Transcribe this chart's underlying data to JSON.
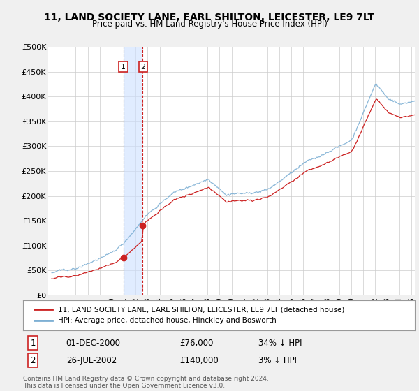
{
  "title": "11, LAND SOCIETY LANE, EARL SHILTON, LEICESTER, LE9 7LT",
  "subtitle": "Price paid vs. HM Land Registry's House Price Index (HPI)",
  "ylim": [
    0,
    500000
  ],
  "yticks": [
    0,
    50000,
    100000,
    150000,
    200000,
    250000,
    300000,
    350000,
    400000,
    450000,
    500000
  ],
  "ytick_labels": [
    "£0",
    "£50K",
    "£100K",
    "£150K",
    "£200K",
    "£250K",
    "£300K",
    "£350K",
    "£400K",
    "£450K",
    "£500K"
  ],
  "bg_color": "#f0f0f0",
  "plot_bg_color": "#ffffff",
  "grid_color": "#cccccc",
  "hpi_color": "#7eb0d4",
  "price_color": "#cc2222",
  "sale1_date_x": 2001.0,
  "sale1_price": 76000,
  "sale2_date_x": 2002.583,
  "sale2_price": 140000,
  "legend_label1": "11, LAND SOCIETY LANE, EARL SHILTON, LEICESTER, LE9 7LT (detached house)",
  "legend_label2": "HPI: Average price, detached house, Hinckley and Bosworth",
  "table_row1": [
    "1",
    "01-DEC-2000",
    "£76,000",
    "34% ↓ HPI"
  ],
  "table_row2": [
    "2",
    "26-JUL-2002",
    "£140,000",
    "3% ↓ HPI"
  ],
  "footnote1": "Contains HM Land Registry data © Crown copyright and database right 2024.",
  "footnote2": "This data is licensed under the Open Government Licence v3.0.",
  "shade_x_start": 2001.0,
  "shade_x_end": 2002.583,
  "xmin": 1994.7,
  "xmax": 2025.3
}
